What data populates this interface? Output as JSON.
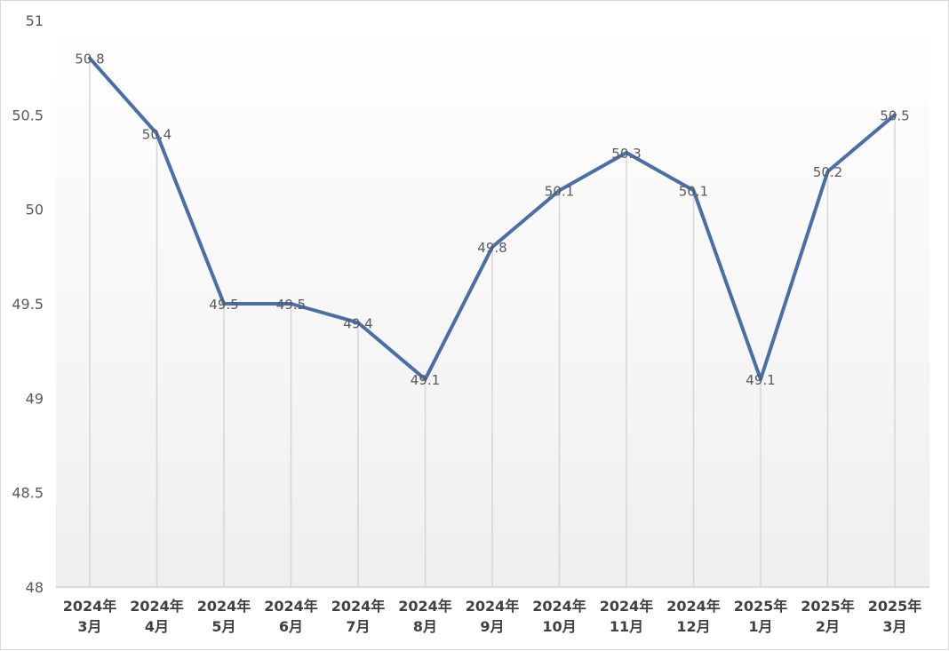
{
  "chart_data": {
    "type": "line",
    "categories": [
      [
        "2024年",
        "3月"
      ],
      [
        "2024年",
        "4月"
      ],
      [
        "2024年",
        "5月"
      ],
      [
        "2024年",
        "6月"
      ],
      [
        "2024年",
        "7月"
      ],
      [
        "2024年",
        "8月"
      ],
      [
        "2024年",
        "9月"
      ],
      [
        "2024年",
        "10月"
      ],
      [
        "2024年",
        "11月"
      ],
      [
        "2024年",
        "12月"
      ],
      [
        "2025年",
        "1月"
      ],
      [
        "2025年",
        "2月"
      ],
      [
        "2025年",
        "3月"
      ]
    ],
    "series": [
      {
        "values": [
          50.8,
          50.4,
          49.5,
          49.5,
          49.4,
          49.1,
          49.8,
          50.1,
          50.3,
          50.1,
          49.1,
          50.2,
          50.5
        ],
        "color": "#4a6fa8"
      }
    ],
    "ylim": [
      48,
      51
    ],
    "yticks": [
      "51",
      "50.5",
      "50",
      "49.5",
      "49",
      "48.5",
      "48"
    ],
    "data_labels": [
      "50.8",
      "50.4",
      "49.5",
      "49.5",
      "49.4",
      "49.1",
      "49.8",
      "50.1",
      "50.3",
      "50.1",
      "49.1",
      "50.2",
      "50.5"
    ],
    "grid": "vertical drop lines",
    "legend": "none",
    "title": ""
  }
}
